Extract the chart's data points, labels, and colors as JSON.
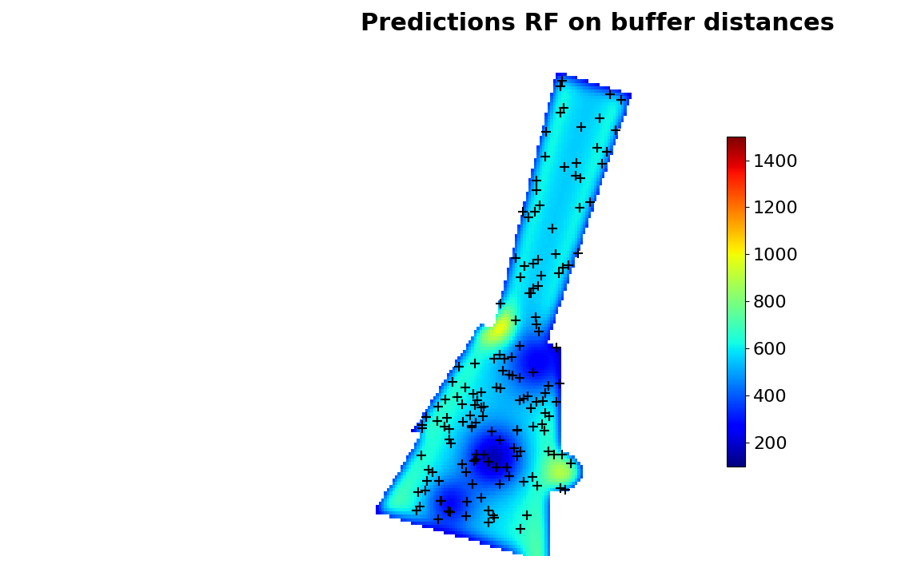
{
  "title": "Predictions RF on buffer distances",
  "title_fontsize": 22,
  "title_fontweight": "bold",
  "colorbar_ticks": [
    200,
    400,
    600,
    800,
    1000,
    1200,
    1400
  ],
  "vmin": 100,
  "vmax": 1500,
  "background_color": "#ffffff",
  "marker": "+",
  "marker_color": "black",
  "marker_size": 8,
  "marker_linewidth": 1.5,
  "figsize": [
    11.52,
    7.11
  ],
  "dpi": 100
}
